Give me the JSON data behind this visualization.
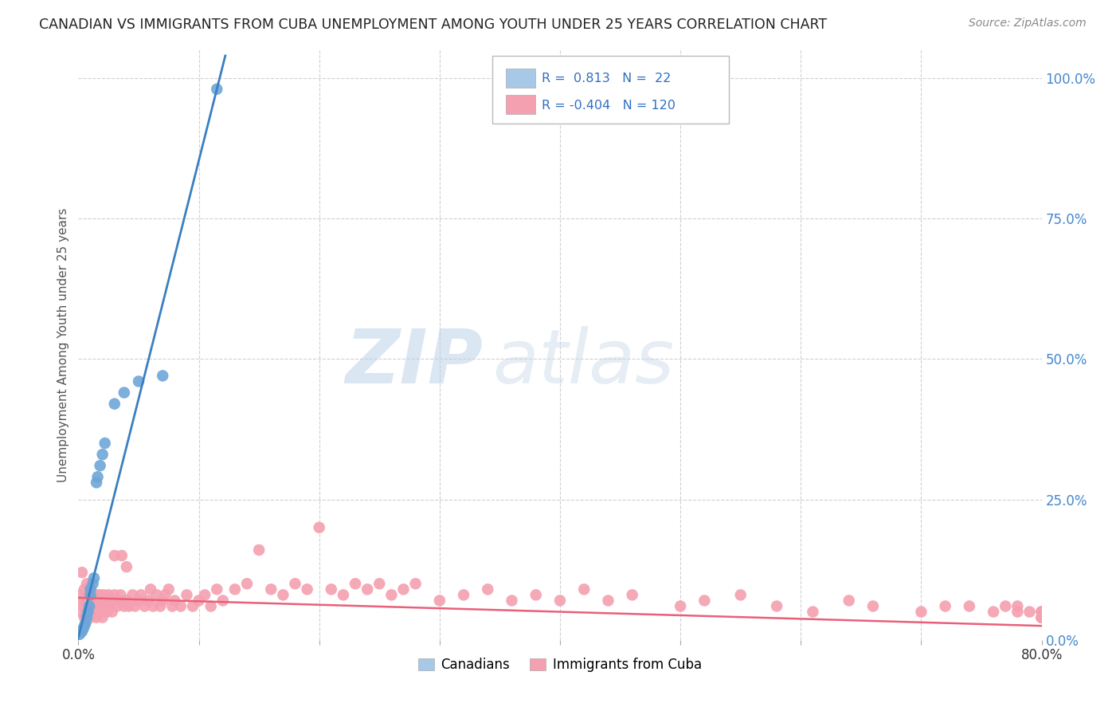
{
  "title": "CANADIAN VS IMMIGRANTS FROM CUBA UNEMPLOYMENT AMONG YOUTH UNDER 25 YEARS CORRELATION CHART",
  "source": "Source: ZipAtlas.com",
  "ylabel": "Unemployment Among Youth under 25 years",
  "xlim": [
    0.0,
    0.8
  ],
  "ylim": [
    0.0,
    1.05
  ],
  "y_tick_labels_right": [
    "0.0%",
    "25.0%",
    "50.0%",
    "75.0%",
    "100.0%"
  ],
  "y_tick_positions_right": [
    0.0,
    0.25,
    0.5,
    0.75,
    1.0
  ],
  "blue_R": 0.813,
  "blue_N": 22,
  "pink_R": -0.404,
  "pink_N": 120,
  "blue_color": "#6ea6d8",
  "pink_color": "#f4a0b0",
  "blue_line_color": "#3a7fc1",
  "pink_line_color": "#e8607a",
  "legend_blue_box": "#a8c8e8",
  "legend_pink_box": "#f4a0b0",
  "watermark_zip": "ZIP",
  "watermark_atlas": "atlas",
  "background_color": "#ffffff",
  "grid_color": "#d0d0d0",
  "blue_scatter_x": [
    0.001,
    0.003,
    0.004,
    0.005,
    0.006,
    0.007,
    0.008,
    0.009,
    0.01,
    0.01,
    0.012,
    0.013,
    0.015,
    0.016,
    0.018,
    0.02,
    0.022,
    0.03,
    0.038,
    0.05,
    0.07,
    0.115
  ],
  "blue_scatter_y": [
    0.01,
    0.015,
    0.02,
    0.025,
    0.03,
    0.04,
    0.05,
    0.06,
    0.08,
    0.09,
    0.1,
    0.11,
    0.28,
    0.29,
    0.31,
    0.33,
    0.35,
    0.42,
    0.44,
    0.46,
    0.47,
    0.98
  ],
  "pink_scatter_x": [
    0.001,
    0.002,
    0.003,
    0.003,
    0.004,
    0.005,
    0.005,
    0.006,
    0.007,
    0.007,
    0.008,
    0.008,
    0.009,
    0.01,
    0.01,
    0.01,
    0.011,
    0.012,
    0.012,
    0.013,
    0.014,
    0.015,
    0.015,
    0.016,
    0.017,
    0.018,
    0.018,
    0.019,
    0.02,
    0.02,
    0.021,
    0.022,
    0.023,
    0.024,
    0.025,
    0.026,
    0.027,
    0.028,
    0.03,
    0.03,
    0.032,
    0.033,
    0.035,
    0.036,
    0.038,
    0.04,
    0.04,
    0.042,
    0.045,
    0.047,
    0.05,
    0.052,
    0.055,
    0.058,
    0.06,
    0.062,
    0.065,
    0.068,
    0.07,
    0.072,
    0.075,
    0.078,
    0.08,
    0.085,
    0.09,
    0.095,
    0.1,
    0.105,
    0.11,
    0.115,
    0.12,
    0.13,
    0.14,
    0.15,
    0.16,
    0.17,
    0.18,
    0.19,
    0.2,
    0.21,
    0.22,
    0.23,
    0.24,
    0.25,
    0.26,
    0.27,
    0.28,
    0.3,
    0.32,
    0.34,
    0.36,
    0.38,
    0.4,
    0.42,
    0.44,
    0.46,
    0.5,
    0.52,
    0.55,
    0.58,
    0.61,
    0.64,
    0.66,
    0.7,
    0.72,
    0.74,
    0.76,
    0.77,
    0.78,
    0.78,
    0.79,
    0.8,
    0.8,
    0.8,
    0.8,
    0.8,
    0.8,
    0.8,
    0.8,
    0.8
  ],
  "pink_scatter_y": [
    0.08,
    0.05,
    0.07,
    0.12,
    0.06,
    0.04,
    0.09,
    0.07,
    0.05,
    0.1,
    0.06,
    0.08,
    0.05,
    0.07,
    0.04,
    0.09,
    0.06,
    0.08,
    0.05,
    0.07,
    0.06,
    0.08,
    0.04,
    0.06,
    0.07,
    0.05,
    0.08,
    0.06,
    0.07,
    0.04,
    0.08,
    0.06,
    0.07,
    0.05,
    0.08,
    0.06,
    0.07,
    0.05,
    0.08,
    0.15,
    0.06,
    0.07,
    0.08,
    0.15,
    0.06,
    0.07,
    0.13,
    0.06,
    0.08,
    0.06,
    0.07,
    0.08,
    0.06,
    0.07,
    0.09,
    0.06,
    0.08,
    0.06,
    0.07,
    0.08,
    0.09,
    0.06,
    0.07,
    0.06,
    0.08,
    0.06,
    0.07,
    0.08,
    0.06,
    0.09,
    0.07,
    0.09,
    0.1,
    0.16,
    0.09,
    0.08,
    0.1,
    0.09,
    0.2,
    0.09,
    0.08,
    0.1,
    0.09,
    0.1,
    0.08,
    0.09,
    0.1,
    0.07,
    0.08,
    0.09,
    0.07,
    0.08,
    0.07,
    0.09,
    0.07,
    0.08,
    0.06,
    0.07,
    0.08,
    0.06,
    0.05,
    0.07,
    0.06,
    0.05,
    0.06,
    0.06,
    0.05,
    0.06,
    0.05,
    0.06,
    0.05,
    0.04,
    0.05,
    0.04,
    0.05,
    0.04,
    0.05,
    0.04,
    0.04,
    0.04
  ]
}
